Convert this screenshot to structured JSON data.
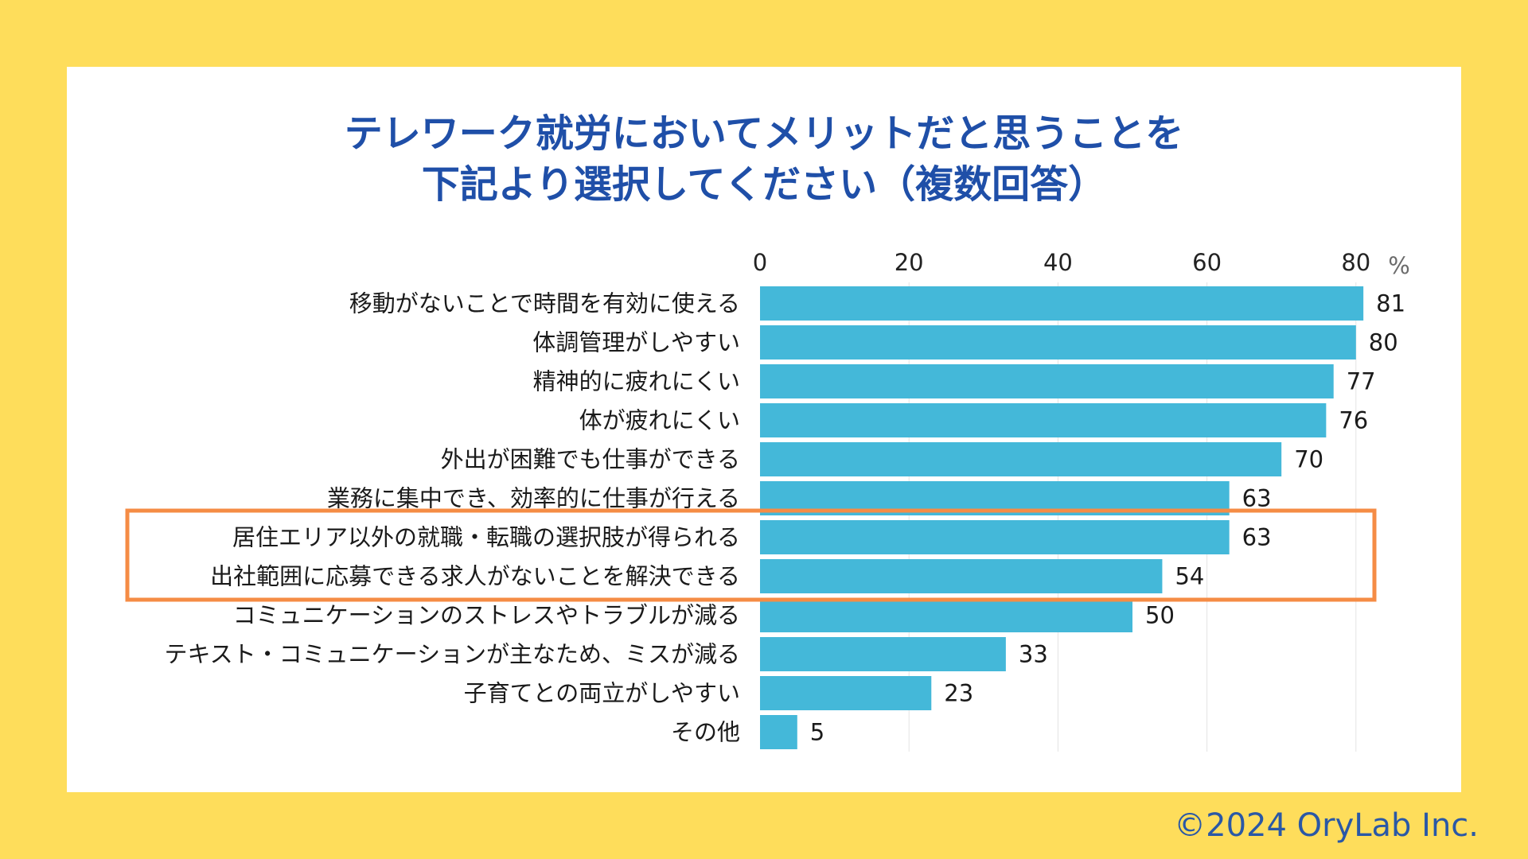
{
  "title": {
    "line1": "テレワーク就労においてメリットだと思うことを",
    "line2": "下記より選択してください（複数回答）"
  },
  "copyright": "©2024 OryLab Inc.",
  "colors": {
    "background": "#FEDD5B",
    "panel": "#FFFFFF",
    "bar": "#44B8D9",
    "title": "#1F4FA8",
    "highlight": "#F58C45",
    "grid": "#E4E4E4"
  },
  "chart_data": {
    "type": "bar",
    "orientation": "horizontal",
    "title": "テレワーク就労においてメリットだと思うことを下記より選択してください（複数回答）",
    "unit": "%",
    "xlim": [
      0,
      80
    ],
    "ticks": [
      0,
      20,
      40,
      60,
      80
    ],
    "grid": true,
    "categories": [
      "移動がないことで時間を有効に使える",
      "体調管理がしやすい",
      "精神的に疲れにくい",
      "体が疲れにくい",
      "外出が困難でも仕事ができる",
      "業務に集中でき、効率的に仕事が行える",
      "居住エリア以外の就職・転職の選択肢が得られる",
      "出社範囲に応募できる求人がないことを解決できる",
      "コミュニケーションのストレスやトラブルが減る",
      "テキスト・コミュニケーションが主なため、ミスが減る",
      "子育てとの両立がしやすい",
      "その他"
    ],
    "values": [
      81,
      80,
      77,
      76,
      70,
      63,
      63,
      54,
      50,
      33,
      23,
      5
    ],
    "highlighted": [
      "居住エリア以外の就職・転職の選択肢が得られる",
      "出社範囲に応募できる求人がないことを解決できる"
    ]
  }
}
